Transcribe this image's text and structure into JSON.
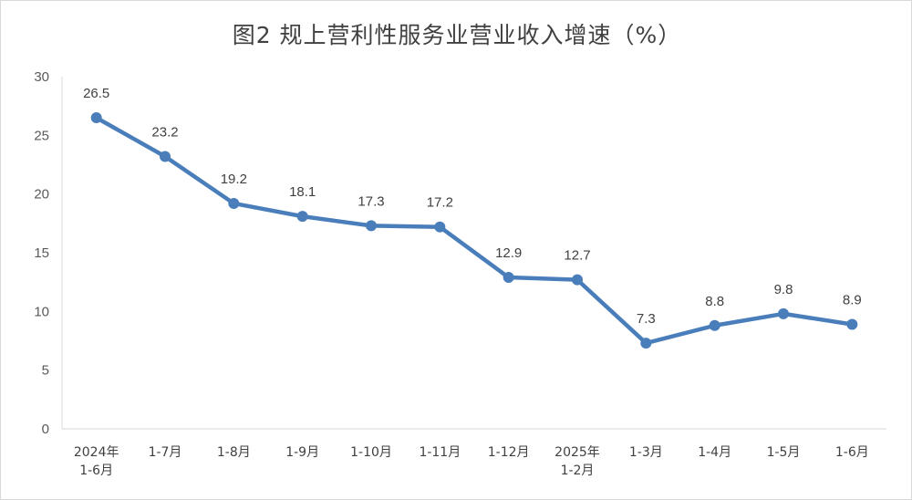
{
  "chart_data": {
    "type": "line",
    "title": "图2 规上营利性服务业营业收入增速（%）",
    "categories": [
      [
        "2024年",
        "1-6月"
      ],
      [
        "1-7月"
      ],
      [
        "1-8月"
      ],
      [
        "1-9月"
      ],
      [
        "1-10月"
      ],
      [
        "1-11月"
      ],
      [
        "1-12月"
      ],
      [
        "2025年",
        "1-2月"
      ],
      [
        "1-3月"
      ],
      [
        "1-4月"
      ],
      [
        "1-5月"
      ],
      [
        "1-6月"
      ]
    ],
    "values": [
      26.5,
      23.2,
      19.2,
      18.1,
      17.3,
      17.2,
      12.9,
      12.7,
      7.3,
      8.8,
      9.8,
      8.9
    ],
    "data_labels": [
      "26.5",
      "23.2",
      "19.2",
      "18.1",
      "17.3",
      "17.2",
      "12.9",
      "12.7",
      "7.3",
      "8.8",
      "9.8",
      "8.9"
    ],
    "ylim": [
      0,
      30
    ],
    "yticks": [
      "0",
      "5",
      "10",
      "15",
      "20",
      "25",
      "30"
    ],
    "grid": false,
    "legend": "none",
    "colors": {
      "line": "#4a7ebb",
      "axis": "#d9d9d9"
    }
  }
}
